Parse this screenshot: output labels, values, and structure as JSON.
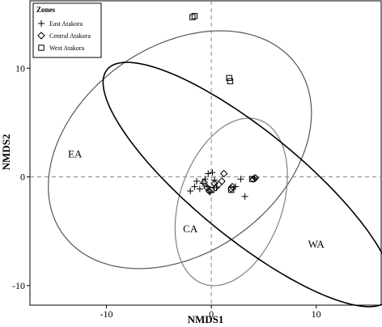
{
  "chart_data": {
    "type": "scatter",
    "xlabel": "NMDS1",
    "ylabel": "NMDS2",
    "xlim": [
      -17.3,
      16.2
    ],
    "ylim": [
      -11.8,
      16.2
    ],
    "xticks": [
      -10,
      0,
      10
    ],
    "yticks": [
      -10,
      0,
      10
    ],
    "xtick_labels": [
      "-10",
      "0",
      "10"
    ],
    "ytick_labels": [
      "-10",
      "0",
      "10"
    ],
    "grid": false,
    "reference_lines": {
      "x": 0,
      "y": 0,
      "style": "dashed"
    },
    "legend": {
      "title": "Zones",
      "placement": "top-left",
      "entries": [
        {
          "label": "East Atakora",
          "marker": "plus"
        },
        {
          "label": "Central Atakora",
          "marker": "diamond"
        },
        {
          "label": "West Atakora",
          "marker": "square"
        }
      ]
    },
    "series": [
      {
        "name": "East Atakora",
        "marker": "plus",
        "points": [
          [
            -2.0,
            -1.3
          ],
          [
            -1.6,
            -0.9
          ],
          [
            -1.4,
            -0.4
          ],
          [
            -1.1,
            -1.1
          ],
          [
            -0.8,
            -0.6
          ],
          [
            -0.6,
            -0.2
          ],
          [
            -0.4,
            -0.9
          ],
          [
            -0.3,
            0.3
          ],
          [
            -0.1,
            -1.4
          ],
          [
            0.1,
            0.4
          ],
          [
            0.3,
            -0.3
          ],
          [
            0.5,
            -1.0
          ],
          [
            2.3,
            -0.9
          ],
          [
            2.8,
            -0.2
          ],
          [
            3.2,
            -1.8
          ],
          [
            4.1,
            -0.1
          ]
        ]
      },
      {
        "name": "Central Atakora",
        "marker": "diamond",
        "points": [
          [
            -0.7,
            -0.5
          ],
          [
            -0.4,
            -1.0
          ],
          [
            -0.2,
            -1.3
          ],
          [
            0.3,
            -0.6
          ],
          [
            0.4,
            -1.0
          ],
          [
            0.7,
            -0.7
          ],
          [
            1.0,
            -0.4
          ],
          [
            1.2,
            0.3
          ],
          [
            1.9,
            -1.1
          ],
          [
            2.0,
            -0.9
          ],
          [
            4.0,
            -0.2
          ],
          [
            4.2,
            -0.1
          ]
        ]
      },
      {
        "name": "West Atakora",
        "marker": "square",
        "points": [
          [
            -1.8,
            14.7
          ],
          [
            -1.6,
            14.8
          ],
          [
            1.7,
            9.1
          ],
          [
            1.8,
            8.8
          ],
          [
            0.0,
            -1.2
          ],
          [
            1.9,
            -1.2
          ],
          [
            3.9,
            -0.2
          ]
        ]
      }
    ],
    "ellipses": [
      {
        "label": "EA",
        "center": [
          -3.0,
          2.5
        ],
        "semi_axes": [
          13.6,
          9.6
        ],
        "angle_deg": 33,
        "stroke": "#555555"
      },
      {
        "label": "CA",
        "center": [
          1.9,
          -2.3
        ],
        "semi_axes": [
          8.0,
          4.9
        ],
        "angle_deg": 70,
        "stroke": "#808080"
      },
      {
        "label": "WA",
        "center": [
          3.5,
          -0.7
        ],
        "semi_axes": [
          17.1,
          5.0
        ],
        "angle_deg": -38,
        "stroke": "#000000"
      }
    ],
    "annotations": [
      {
        "text": "EA",
        "x": -13.0,
        "y": 1.8
      },
      {
        "text": "CA",
        "x": -2.0,
        "y": -5.1
      },
      {
        "text": "WA",
        "x": 10.0,
        "y": -6.5
      }
    ]
  }
}
